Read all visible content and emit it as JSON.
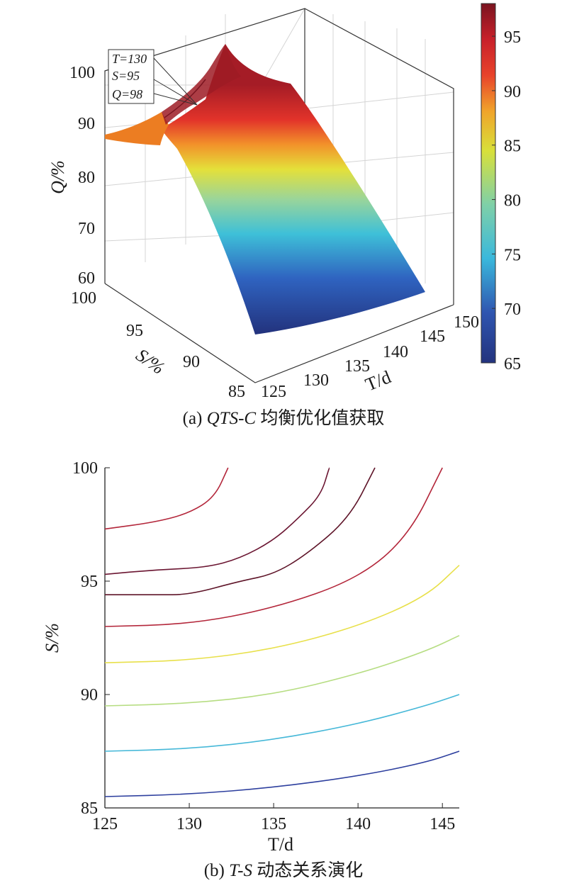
{
  "chart_data": [
    {
      "type": "surface",
      "panel_label": "(a)",
      "caption_italic": "QTS-C",
      "caption_rest": " 均衡优化值获取",
      "xlabel": "T/d",
      "ylabel": "S/%",
      "zlabel": "Q/%",
      "xlim": [
        125,
        150
      ],
      "ylim": [
        85,
        100
      ],
      "zlim": [
        60,
        100
      ],
      "x_ticks": [
        "125",
        "130",
        "135",
        "140",
        "145",
        "150"
      ],
      "y_ticks": [
        "85",
        "90",
        "95",
        "100"
      ],
      "z_ticks": [
        "60",
        "70",
        "80",
        "90",
        "100"
      ],
      "colorbar": {
        "min": 65,
        "max": 98,
        "ticks": [
          "65",
          "70",
          "75",
          "80",
          "85",
          "90",
          "95"
        ]
      },
      "annotation": {
        "lines": [
          "T=130",
          "S=95",
          "Q=98"
        ]
      },
      "surface_profile_S_vs_Q_at_T125": {
        "S": [
          100,
          97,
          95,
          93,
          91,
          89,
          87,
          85
        ],
        "Q": [
          89,
          92,
          96,
          94,
          87,
          80,
          73,
          66
        ]
      },
      "peak": {
        "T": 130,
        "S": 95,
        "Q": 98
      },
      "grid": true
    },
    {
      "type": "contour",
      "panel_label": "(b)",
      "caption_italic": "T-S",
      "caption_rest": " 动态关系演化",
      "xlabel": "T/d",
      "ylabel": "S/%",
      "xlim": [
        125,
        146
      ],
      "ylim": [
        85,
        100
      ],
      "x_ticks": [
        "125",
        "130",
        "135",
        "140",
        "145"
      ],
      "y_ticks": [
        "85",
        "90",
        "95",
        "100"
      ],
      "series": [
        {
          "color": "#2d3f9e",
          "T": [
            125,
            130,
            135,
            140,
            144,
            146
          ],
          "S": [
            85.5,
            85.6,
            85.9,
            86.4,
            87.0,
            87.5
          ]
        },
        {
          "color": "#46b8d8",
          "T": [
            125,
            130,
            135,
            140,
            144,
            146
          ],
          "S": [
            87.5,
            87.6,
            88.0,
            88.7,
            89.5,
            90.0
          ]
        },
        {
          "color": "#b6dd82",
          "T": [
            125,
            130,
            135,
            140,
            144,
            146
          ],
          "S": [
            89.5,
            89.6,
            90.0,
            90.9,
            91.9,
            92.6
          ]
        },
        {
          "color": "#e8e04a",
          "T": [
            125,
            130,
            135,
            140,
            144,
            146
          ],
          "S": [
            91.4,
            91.5,
            92.0,
            93.0,
            94.3,
            95.7
          ]
        },
        {
          "color": "#b3263a",
          "T": [
            125,
            130,
            135,
            140,
            143,
            145
          ],
          "S": [
            93.0,
            93.1,
            93.8,
            95.1,
            97.0,
            100.0
          ]
        },
        {
          "color": "#5e1428",
          "T": [
            125,
            128,
            130,
            133,
            135,
            137,
            139.5,
            141
          ],
          "S": [
            94.4,
            94.4,
            94.4,
            95.0,
            95.3,
            96.2,
            97.8,
            100.0
          ]
        },
        {
          "color": "#6b1632",
          "T": [
            125,
            128,
            131,
            133,
            135,
            136.5,
            137.8,
            138.3
          ],
          "S": [
            95.3,
            95.5,
            95.6,
            96.0,
            96.8,
            97.8,
            98.8,
            100.0
          ]
        },
        {
          "color": "#b3263a",
          "T": [
            125,
            128,
            130,
            131.5,
            132.3
          ],
          "S": [
            97.3,
            97.6,
            98.0,
            98.7,
            100.0
          ]
        }
      ]
    }
  ]
}
